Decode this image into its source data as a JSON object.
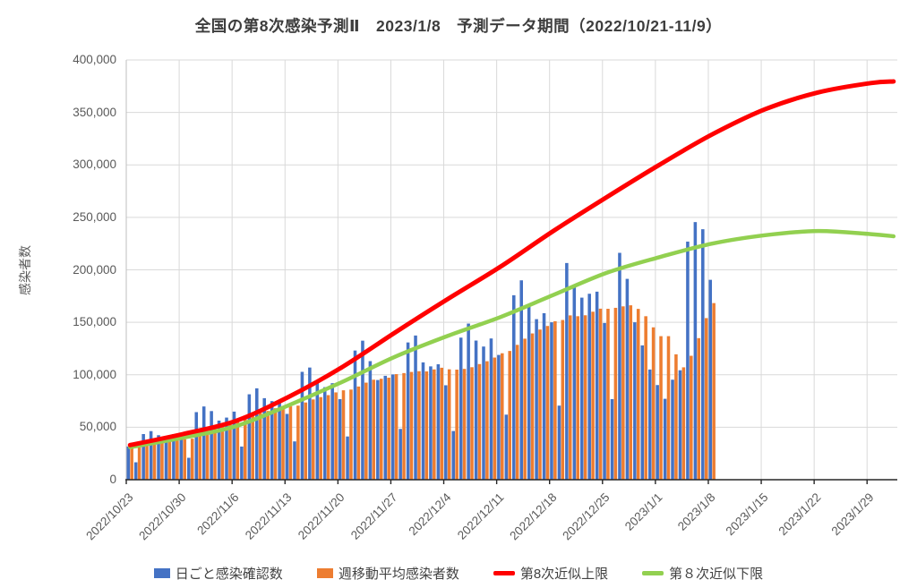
{
  "title": "全国の第8次感染予測Ⅱ　2023/1/8　予測データ期間（2022/10/21-11/9）",
  "y_axis": {
    "title": "感染者数",
    "tick_labels": [
      "0",
      "50,000",
      "100,000",
      "150,000",
      "200,000",
      "250,000",
      "300,000",
      "350,000",
      "400,000"
    ],
    "min": 0,
    "max": 400000,
    "step": 50000
  },
  "x_axis": {
    "tick_labels": [
      "2022/10/23",
      "2022/10/30",
      "2022/11/6",
      "2022/11/13",
      "2022/11/20",
      "2022/11/27",
      "2022/12/4",
      "2022/12/11",
      "2022/12/18",
      "2022/12/25",
      "2023/1/1",
      "2023/1/8",
      "2023/1/15",
      "2023/1/22",
      "2023/1/29"
    ],
    "tick_interval_days": 7
  },
  "legend": {
    "items": [
      {
        "label": "日ごと感染確認数",
        "type": "bar",
        "color": "#4472C4"
      },
      {
        "label": "週移動平均感染者数",
        "type": "bar",
        "color": "#ED7D31"
      },
      {
        "label": "第8次近似上限",
        "type": "line",
        "color": "#FF0000"
      },
      {
        "label": "第８次近似下限",
        "type": "line",
        "color": "#92D050"
      }
    ]
  },
  "colors": {
    "daily_bar": "#4472C4",
    "ma_bar": "#ED7D31",
    "upper_line": "#FF0000",
    "lower_line": "#92D050",
    "grid": "#D9D9D9",
    "axis_line": "#262626",
    "axis_text": "#595959",
    "title_text": "#3d3d3d"
  },
  "chart_data": {
    "type": "combo-bar-line",
    "ylim": [
      0,
      400000
    ],
    "grid": true,
    "x_total_days": 102,
    "categories": [
      "2022/10/23",
      "2022/10/24",
      "2022/10/25",
      "2022/10/26",
      "2022/10/27",
      "2022/10/28",
      "2022/10/29",
      "2022/10/30",
      "2022/10/31",
      "2022/11/1",
      "2022/11/2",
      "2022/11/3",
      "2022/11/4",
      "2022/11/5",
      "2022/11/6",
      "2022/11/7",
      "2022/11/8",
      "2022/11/9",
      "2022/11/10",
      "2022/11/11",
      "2022/11/12",
      "2022/11/13",
      "2022/11/14",
      "2022/11/15",
      "2022/11/16",
      "2022/11/17",
      "2022/11/18",
      "2022/11/19",
      "2022/11/20",
      "2022/11/21",
      "2022/11/22",
      "2022/11/23",
      "2022/11/24",
      "2022/11/25",
      "2022/11/26",
      "2022/11/27",
      "2022/11/28",
      "2022/11/29",
      "2022/11/30",
      "2022/12/1",
      "2022/12/2",
      "2022/12/3",
      "2022/12/4",
      "2022/12/5",
      "2022/12/6",
      "2022/12/7",
      "2022/12/8",
      "2022/12/9",
      "2022/12/10",
      "2022/12/11",
      "2022/12/12",
      "2022/12/13",
      "2022/12/14",
      "2022/12/15",
      "2022/12/16",
      "2022/12/17",
      "2022/12/18",
      "2022/12/19",
      "2022/12/20",
      "2022/12/21",
      "2022/12/22",
      "2022/12/23",
      "2022/12/24",
      "2022/12/25",
      "2022/12/26",
      "2022/12/27",
      "2022/12/28",
      "2022/12/29",
      "2022/12/30",
      "2022/12/31",
      "2023/1/1",
      "2023/1/2",
      "2023/1/3",
      "2023/1/4",
      "2023/1/5",
      "2023/1/6",
      "2023/1/7",
      "2023/1/8"
    ],
    "series": [
      {
        "name": "日ごと感染確認数",
        "type": "bar",
        "color": "#4472C4",
        "values": [
          31700,
          16600,
          43500,
          46300,
          42400,
          37600,
          43400,
          39600,
          20900,
          64400,
          69800,
          65400,
          56300,
          59200,
          64900,
          31600,
          81400,
          87100,
          77700,
          74900,
          73500,
          62700,
          36500,
          102800,
          106900,
          93300,
          88200,
          92000,
          76800,
          41200,
          123100,
          132500,
          113000,
          95000,
          99000,
          100300,
          48400,
          130800,
          137400,
          111800,
          108000,
          110000,
          90000,
          46400,
          135400,
          148800,
          132600,
          126900,
          134600,
          118900,
          62000,
          175800,
          190000,
          167300,
          153000,
          158700,
          150000,
          70600,
          206500,
          184300,
          173500,
          177200,
          179200,
          149300,
          76800,
          216200,
          191400,
          150000,
          128000,
          105000,
          90200,
          77100,
          95300,
          104300,
          226900,
          245500,
          238700,
          190500
        ]
      },
      {
        "name": "週移動平均感染者数",
        "type": "bar",
        "color": "#ED7D31",
        "values": [
          33500,
          33700,
          34500,
          35500,
          36200,
          36600,
          37400,
          38500,
          39100,
          42100,
          45500,
          48800,
          51400,
          53700,
          57300,
          58800,
          61300,
          63700,
          65500,
          68100,
          70200,
          69900,
          70600,
          73600,
          76500,
          78700,
          80600,
          83200,
          85200,
          85900,
          88800,
          92500,
          95300,
          96200,
          97200,
          100600,
          101600,
          102700,
          103400,
          103200,
          105100,
          106700,
          105200,
          104900,
          105600,
          107200,
          110200,
          112900,
          116400,
          120500,
          122700,
          128500,
          134400,
          139400,
          143100,
          146500,
          151000,
          152200,
          156600,
          155800,
          156700,
          160100,
          163000,
          162900,
          163800,
          165200,
          166200,
          162800,
          155800,
          145200,
          136800,
          136800,
          119500,
          107100,
          118100,
          134900,
          154000,
          168300
        ]
      },
      {
        "name": "第8次近似上限",
        "type": "line",
        "color": "#FF0000",
        "anchor_days": [
          0,
          7,
          14,
          21,
          28,
          35,
          42,
          49,
          56,
          63,
          70,
          77,
          84,
          91,
          98,
          101
        ],
        "values": [
          33000,
          43500,
          56000,
          79000,
          107000,
          140000,
          172000,
          203000,
          237000,
          269000,
          300000,
          329000,
          353000,
          369000,
          378000,
          379500
        ]
      },
      {
        "name": "第８次近似下限",
        "type": "line",
        "color": "#92D050",
        "anchor_days": [
          0,
          7,
          14,
          21,
          28,
          35,
          42,
          49,
          56,
          63,
          70,
          77,
          84,
          91,
          98,
          101
        ],
        "values": [
          31000,
          40000,
          51000,
          71000,
          93000,
          117000,
          137000,
          155000,
          176000,
          197000,
          212000,
          225000,
          233000,
          237000,
          234000,
          232000
        ]
      }
    ]
  }
}
